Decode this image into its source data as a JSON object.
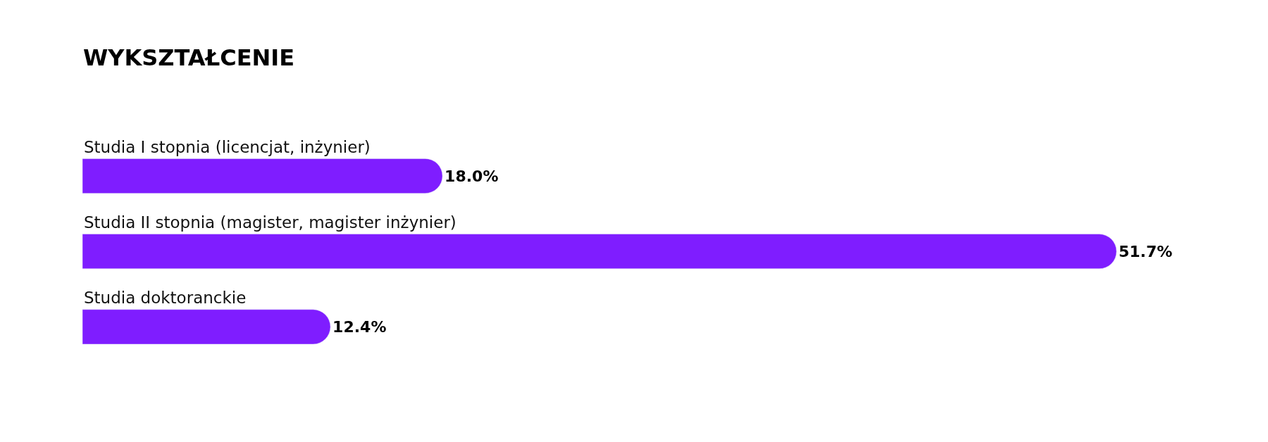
{
  "chart_data": {
    "type": "bar",
    "orientation": "horizontal",
    "title": "WYKSZTAŁCENIE",
    "categories": [
      "Studia I stopnia (licencjat, inżynier)",
      "Studia II stopnia (magister, magister inżynier)",
      "Studia doktoranckie"
    ],
    "values": [
      18.0,
      51.7,
      12.4
    ],
    "value_labels": [
      "18.0%",
      "51.7%",
      "12.4%"
    ],
    "color": "#7f1dff"
  }
}
